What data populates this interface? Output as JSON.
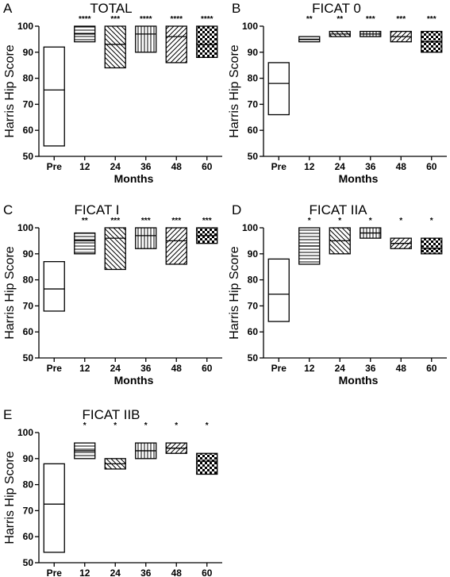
{
  "chart_data": [
    {
      "type": "box",
      "panel": "A",
      "title": "TOTAL",
      "ylabel": "Harris Hip Score",
      "xlabel": "Months",
      "categories": [
        "Pre",
        "12",
        "24",
        "36",
        "48",
        "60"
      ],
      "yticks": [
        50,
        60,
        70,
        80,
        90,
        100
      ],
      "ylim": [
        50,
        100
      ],
      "boxes": [
        {
          "low": 54,
          "mid": 75.5,
          "high": 92,
          "pattern": "none",
          "sig": ""
        },
        {
          "low": 94,
          "mid": 97,
          "high": 100,
          "pattern": "hlines",
          "sig": "****"
        },
        {
          "low": 84,
          "mid": 93,
          "high": 100,
          "pattern": "diag-down",
          "sig": "***"
        },
        {
          "low": 90,
          "mid": 97,
          "high": 100,
          "pattern": "vlines",
          "sig": "****"
        },
        {
          "low": 86,
          "mid": 96,
          "high": 100,
          "pattern": "diag-up",
          "sig": "****"
        },
        {
          "low": 88,
          "mid": 93,
          "high": 100,
          "pattern": "checker",
          "sig": "****"
        }
      ]
    },
    {
      "type": "box",
      "panel": "B",
      "title": "FICAT 0",
      "ylabel": "Harris Hip Score",
      "xlabel": "Months",
      "categories": [
        "Pre",
        "12",
        "24",
        "36",
        "48",
        "60"
      ],
      "yticks": [
        50,
        60,
        70,
        80,
        90,
        100
      ],
      "ylim": [
        50,
        100
      ],
      "boxes": [
        {
          "low": 66,
          "mid": 78,
          "high": 86,
          "pattern": "none",
          "sig": ""
        },
        {
          "low": 94,
          "mid": 95,
          "high": 96,
          "pattern": "hlines",
          "sig": "**"
        },
        {
          "low": 96,
          "mid": 97,
          "high": 98,
          "pattern": "diag-down",
          "sig": "**"
        },
        {
          "low": 96,
          "mid": 97,
          "high": 98,
          "pattern": "vlines",
          "sig": "***"
        },
        {
          "low": 94,
          "mid": 96,
          "high": 98,
          "pattern": "diag-up",
          "sig": "***"
        },
        {
          "low": 90,
          "mid": 94,
          "high": 98,
          "pattern": "checker",
          "sig": "***"
        }
      ]
    },
    {
      "type": "box",
      "panel": "C",
      "title": "FICAT I",
      "ylabel": "Harris Hip Score",
      "xlabel": "Months",
      "categories": [
        "Pre",
        "12",
        "24",
        "36",
        "48",
        "60"
      ],
      "yticks": [
        50,
        60,
        70,
        80,
        90,
        100
      ],
      "ylim": [
        50,
        100
      ],
      "boxes": [
        {
          "low": 68,
          "mid": 76.5,
          "high": 87,
          "pattern": "none",
          "sig": ""
        },
        {
          "low": 90,
          "mid": 95,
          "high": 98,
          "pattern": "hlines",
          "sig": "**"
        },
        {
          "low": 84,
          "mid": 96,
          "high": 100,
          "pattern": "diag-down",
          "sig": "***"
        },
        {
          "low": 92,
          "mid": 97,
          "high": 100,
          "pattern": "vlines",
          "sig": "***"
        },
        {
          "low": 86,
          "mid": 95,
          "high": 100,
          "pattern": "diag-up",
          "sig": "***"
        },
        {
          "low": 94,
          "mid": 97,
          "high": 100,
          "pattern": "checker",
          "sig": "***"
        }
      ]
    },
    {
      "type": "box",
      "panel": "D",
      "title": "FICAT IIA",
      "ylabel": "Harris Hip Score",
      "xlabel": "Months",
      "categories": [
        "Pre",
        "12",
        "24",
        "36",
        "48",
        "60"
      ],
      "yticks": [
        50,
        60,
        70,
        80,
        90,
        100
      ],
      "ylim": [
        50,
        100
      ],
      "boxes": [
        {
          "low": 64,
          "mid": 74.5,
          "high": 88,
          "pattern": "none",
          "sig": ""
        },
        {
          "low": 86,
          "mid": 93,
          "high": 100,
          "pattern": "hlines",
          "sig": "*"
        },
        {
          "low": 90,
          "mid": 95,
          "high": 100,
          "pattern": "diag-down",
          "sig": "*"
        },
        {
          "low": 96,
          "mid": 98,
          "high": 100,
          "pattern": "vlines",
          "sig": "*"
        },
        {
          "low": 92,
          "mid": 94,
          "high": 96,
          "pattern": "diag-up",
          "sig": "*"
        },
        {
          "low": 90,
          "mid": 92,
          "high": 96,
          "pattern": "checker",
          "sig": "*"
        }
      ]
    },
    {
      "type": "box",
      "panel": "E",
      "title": "FICAT IIB",
      "ylabel": "Harris Hip Score",
      "xlabel": "Months",
      "categories": [
        "Pre",
        "12",
        "24",
        "36",
        "48",
        "60"
      ],
      "yticks": [
        50,
        60,
        70,
        80,
        90,
        100
      ],
      "ylim": [
        50,
        100
      ],
      "boxes": [
        {
          "low": 54,
          "mid": 72.5,
          "high": 88,
          "pattern": "none",
          "sig": ""
        },
        {
          "low": 90,
          "mid": 93,
          "high": 96,
          "pattern": "hlines",
          "sig": "*"
        },
        {
          "low": 86,
          "mid": 88,
          "high": 90,
          "pattern": "diag-down",
          "sig": "*"
        },
        {
          "low": 90,
          "mid": 93,
          "high": 96,
          "pattern": "vlines",
          "sig": "*"
        },
        {
          "low": 92,
          "mid": 94,
          "high": 96,
          "pattern": "diag-up",
          "sig": "*"
        },
        {
          "low": 84,
          "mid": 89,
          "high": 92,
          "pattern": "checker",
          "sig": "*"
        }
      ]
    }
  ]
}
